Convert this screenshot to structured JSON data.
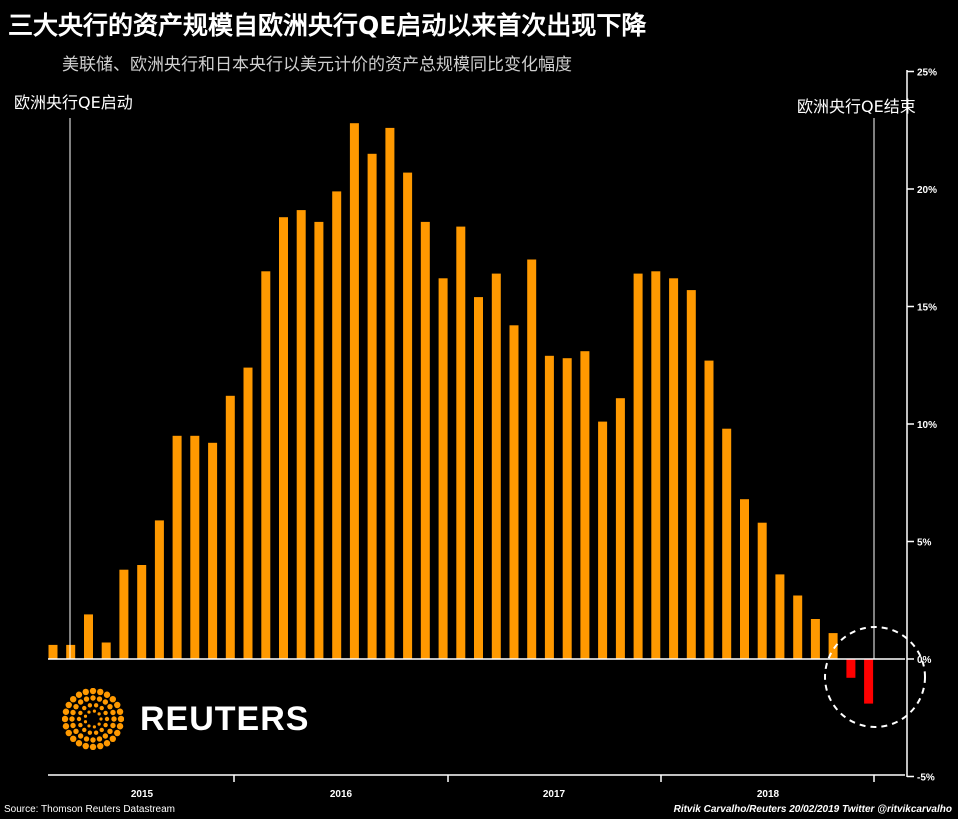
{
  "title": "三大央行的资产规模自欧洲央行QE启动以来首次出现下降",
  "subtitle": "美联储、欧洲央行和日本央行以美元计价的资产总规模同比变化幅度",
  "annotations": {
    "qe_start": "欧洲央行QE启动",
    "qe_end": "欧洲央行QE结束"
  },
  "logo": {
    "name": "reuters-logo",
    "text": "REUTERS"
  },
  "footer": {
    "source": "Source: Thomson Reuters Datastream",
    "credit": "Ritvik Carvalho/Reuters 20/02/2019 Twitter @ritvikcarvalho"
  },
  "colors": {
    "positive": "#FF9900",
    "negative": "#FF0000",
    "background": "#000000",
    "axis": "#FFFFFF"
  },
  "chart_data": {
    "type": "bar",
    "title": "三大央行的资产规模自欧洲央行QE启动以来首次出现下降",
    "subtitle": "美联储、欧洲央行和日本央行以美元计价的资产总规模同比变化幅度",
    "xlabel": "",
    "ylabel": "",
    "y_axis_position": "right",
    "ylim": [
      -5,
      25
    ],
    "y_ticks": [
      -5,
      0,
      5,
      10,
      15,
      20,
      25
    ],
    "y_tick_labels": [
      "-5%",
      "0%",
      "5%",
      "10%",
      "15%",
      "20%",
      "25%"
    ],
    "x_year_labels": [
      "2015",
      "2016",
      "2017",
      "2018"
    ],
    "grid": false,
    "values": [
      0.6,
      0.6,
      1.9,
      0.7,
      3.8,
      4.0,
      5.9,
      9.5,
      9.5,
      9.2,
      11.2,
      12.4,
      16.5,
      18.8,
      19.1,
      18.6,
      19.9,
      22.8,
      21.5,
      22.6,
      20.7,
      18.6,
      16.2,
      18.4,
      15.4,
      16.4,
      14.2,
      17.0,
      12.9,
      12.8,
      13.1,
      10.1,
      11.1,
      16.4,
      16.5,
      16.2,
      15.7,
      12.7,
      9.8,
      6.8,
      5.8,
      3.6,
      2.7,
      1.7,
      1.1,
      -0.8,
      -1.9
    ],
    "markers": [
      {
        "label": "欧洲央行QE启动"
      },
      {
        "label": "欧洲央行QE结束"
      }
    ]
  }
}
